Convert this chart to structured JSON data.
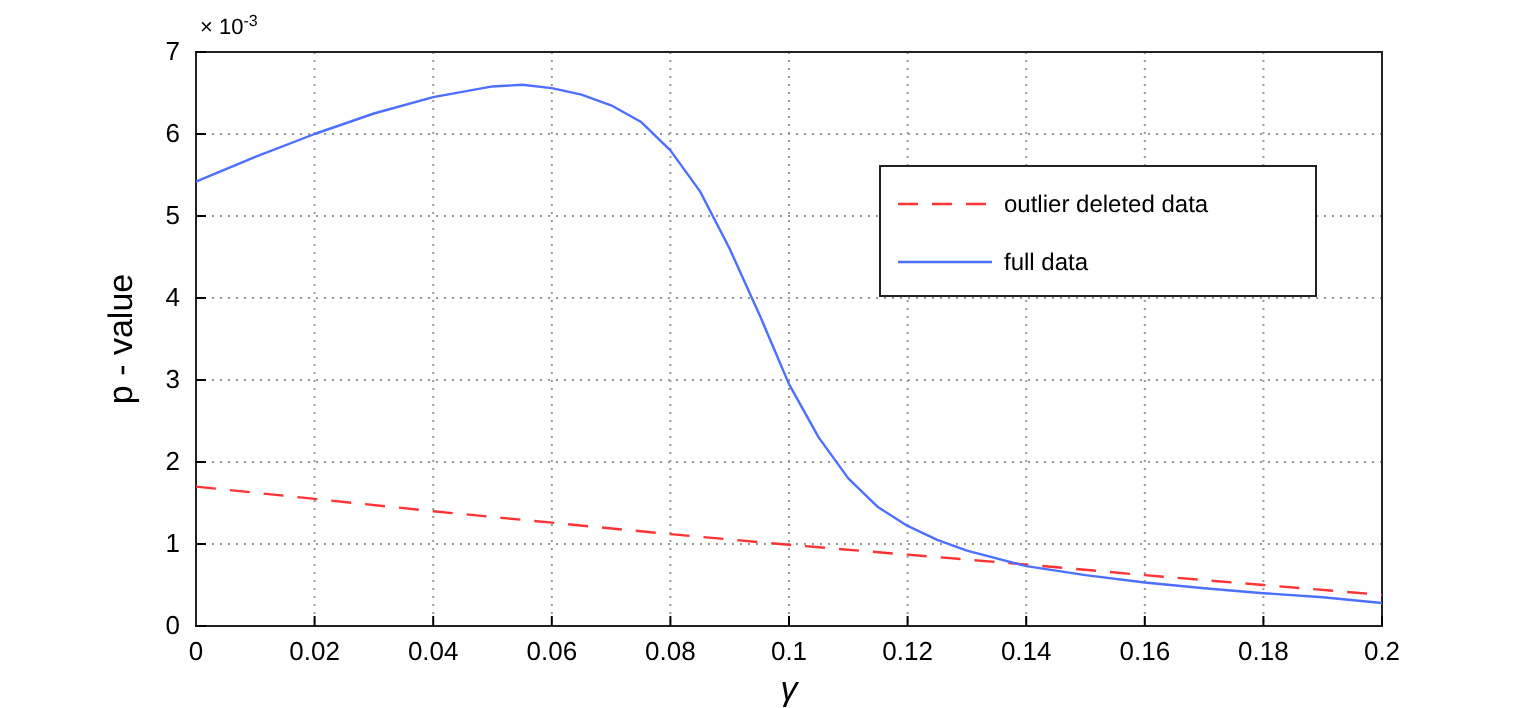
{
  "chart_data": {
    "type": "line",
    "xlabel": "γ",
    "ylabel": "p - value",
    "annotations": [
      "× 10$^{-3}$"
    ],
    "xlim": [
      0,
      0.2
    ],
    "xticks": [
      0,
      0.02,
      0.04,
      0.06,
      0.08,
      0.1,
      0.12,
      0.14,
      0.16,
      0.18,
      0.2
    ],
    "ylim": [
      0,
      7
    ],
    "yticks": [
      0,
      1,
      2,
      3,
      4,
      5,
      6,
      7
    ],
    "grid": true,
    "legend": "top right",
    "marker": "none",
    "series": [
      {
        "name": "outlier deleted data",
        "color": "#ff3333",
        "line_style": "dashed",
        "x": [
          0,
          0.02,
          0.04,
          0.06,
          0.08,
          0.1,
          0.12,
          0.14,
          0.16,
          0.18,
          0.2
        ],
        "values": [
          1.7,
          1.55,
          1.4,
          1.26,
          1.12,
          0.99,
          0.87,
          0.75,
          0.62,
          0.5,
          0.38
        ]
      },
      {
        "name": "full data",
        "color": "#4d6fff",
        "line_style": "solid",
        "x": [
          0,
          0.01,
          0.02,
          0.03,
          0.04,
          0.05,
          0.055,
          0.06,
          0.065,
          0.07,
          0.075,
          0.08,
          0.085,
          0.09,
          0.095,
          0.1,
          0.105,
          0.11,
          0.115,
          0.12,
          0.125,
          0.13,
          0.14,
          0.15,
          0.16,
          0.17,
          0.18,
          0.19,
          0.2
        ],
        "values": [
          5.42,
          5.72,
          6.0,
          6.25,
          6.45,
          6.58,
          6.6,
          6.56,
          6.48,
          6.35,
          6.15,
          5.8,
          5.3,
          4.6,
          3.8,
          2.95,
          2.3,
          1.8,
          1.45,
          1.22,
          1.05,
          0.92,
          0.73,
          0.62,
          0.53,
          0.46,
          0.4,
          0.35,
          0.28
        ]
      }
    ]
  }
}
